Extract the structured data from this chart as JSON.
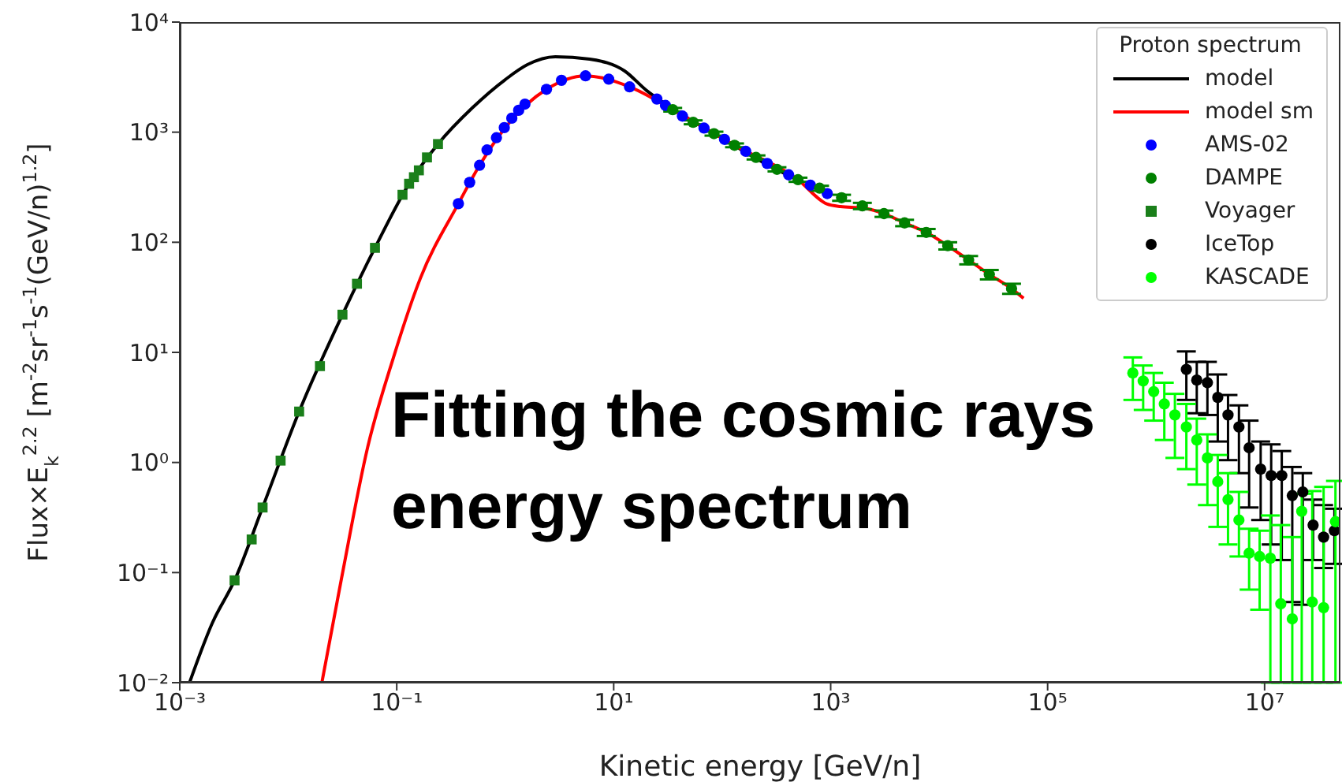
{
  "chart_data": {
    "type": "scatter",
    "xlabel": "Kinetic energy [GeV/n]",
    "ylabel": "Flux×E$_{k}$$^{2.2}$ [m$^{-2}$sr$^{-1}$s$^{-1}$(GeV/n)$^{1.2}$]",
    "legend_title": "Proton spectrum",
    "legend": "top right",
    "log": "xy",
    "xlim": [
      0.001,
      50000000
    ],
    "ylim": [
      0.01,
      10000
    ],
    "xticks": [
      {
        "value": 0.001,
        "label": "10⁻³"
      },
      {
        "value": 0.1,
        "label": "10⁻¹"
      },
      {
        "value": 10,
        "label": "10¹"
      },
      {
        "value": 1000,
        "label": "10³"
      },
      {
        "value": 100000,
        "label": "10⁵"
      },
      {
        "value": 10000000,
        "label": "10⁷"
      }
    ],
    "yticks": [
      {
        "value": 0.01,
        "label": "10⁻²"
      },
      {
        "value": 0.1,
        "label": "10⁻¹"
      },
      {
        "value": 1,
        "label": "10⁰"
      },
      {
        "value": 10,
        "label": "10¹"
      },
      {
        "value": 100,
        "label": "10²"
      },
      {
        "value": 1000,
        "label": "10³"
      },
      {
        "value": 10000,
        "label": "10⁴"
      }
    ],
    "annotations": [
      "Fitting the cosmic rays energy spectrum"
    ],
    "series": [
      {
        "name": "model",
        "type": "line",
        "color": "#000000",
        "x": [
          0.00123,
          0.002,
          0.0032,
          0.0058,
          0.0126,
          0.0316,
          0.063,
          0.13,
          0.24,
          0.5,
          1,
          1.6,
          2.9,
          6,
          12.6,
          20,
          30,
          100,
          300,
          500
        ],
        "values": [
          0.01,
          0.035,
          0.085,
          0.39,
          2.9,
          22,
          89,
          340,
          780,
          1670,
          3000,
          4100,
          4840,
          4600,
          3600,
          2400,
          1800,
          880,
          470,
          370
        ]
      },
      {
        "name": "model sm",
        "type": "line",
        "color": "#ff0000",
        "x": [
          0.0204,
          0.031,
          0.054,
          0.093,
          0.165,
          0.37,
          0.58,
          1,
          2.4,
          5.5,
          14,
          35,
          130,
          500,
          920,
          1230,
          1960,
          3100,
          4800,
          7600,
          12000,
          18700,
          29000,
          46500,
          60000
        ],
        "values": [
          0.01,
          0.089,
          1.38,
          8.9,
          47,
          224,
          500,
          1100,
          2450,
          3250,
          2580,
          1600,
          760,
          370,
          223,
          211,
          205,
          182,
          150,
          123,
          93,
          69,
          51,
          38,
          31
        ]
      },
      {
        "name": "AMS-02",
        "marker": "circle",
        "color": "#0000ff",
        "x": [
          0.37,
          0.47,
          0.58,
          0.68,
          0.83,
          0.98,
          1.15,
          1.33,
          1.52,
          2.4,
          3.3,
          5.5,
          9,
          14,
          25,
          30,
          43,
          68,
          105,
          165,
          260,
          410,
          650,
          930
        ],
        "values": [
          224,
          350,
          500,
          690,
          890,
          1100,
          1340,
          1580,
          1800,
          2450,
          2960,
          3250,
          3030,
          2580,
          2000,
          1750,
          1400,
          1090,
          860,
          670,
          520,
          410,
          330,
          277
        ]
      },
      {
        "name": "DAMPE",
        "marker": "circle",
        "color": "#008000",
        "x": [
          35,
          54,
          84,
          130,
          205,
          320,
          500,
          790,
          1260,
          1960,
          3100,
          4800,
          7600,
          12000,
          18700,
          29000,
          46500
        ],
        "values": [
          1600,
          1230,
          970,
          760,
          590,
          460,
          370,
          310,
          254,
          214,
          182,
          150,
          123,
          93,
          69,
          51,
          38
        ],
        "errors": [
          60,
          50,
          40,
          30,
          25,
          20,
          16,
          16,
          16,
          14,
          12,
          10,
          9,
          7,
          6,
          5,
          4
        ]
      },
      {
        "name": "Voyager",
        "color": "#1a7f1a",
        "marker": "square",
        "x": [
          0.0032,
          0.0046,
          0.0058,
          0.0085,
          0.0126,
          0.0196,
          0.0316,
          0.043,
          0.063,
          0.113,
          0.13,
          0.144,
          0.16,
          0.19,
          0.24
        ],
        "values": [
          0.085,
          0.2,
          0.39,
          1.04,
          2.9,
          7.5,
          22,
          42,
          89,
          270,
          340,
          390,
          450,
          590,
          780
        ]
      },
      {
        "name": "IceTop",
        "marker": "circle",
        "color": "#000000",
        "x": [
          1900000,
          2370000,
          2970000,
          3700000,
          4600000,
          5800000,
          7200000,
          9200000,
          11500000,
          14400000,
          18000000,
          22500000,
          28000000,
          35000000,
          44000000
        ],
        "values": [
          7.0,
          5.6,
          5.3,
          3.9,
          2.7,
          2.1,
          1.36,
          0.87,
          0.76,
          0.76,
          0.5,
          0.54,
          0.27,
          0.21,
          0.24
        ],
        "errors": [
          [
            3.7,
            10.2
          ],
          [
            2.8,
            8.2
          ],
          [
            2.7,
            8.2
          ],
          [
            1.55,
            6.3
          ],
          [
            1.05,
            4.1
          ],
          [
            0.8,
            3.3
          ],
          [
            0.39,
            2.4
          ],
          [
            0.3,
            1.55
          ],
          [
            0.18,
            1.46
          ],
          [
            0.13,
            1.27
          ],
          [
            0.054,
            0.91
          ],
          [
            0.051,
            0.8
          ],
          [
            0.13,
            0.46
          ],
          [
            0.11,
            0.41
          ],
          [
            0.12,
            0.38
          ]
        ]
      },
      {
        "name": "KASCADE",
        "marker": "circle",
        "color": "#00ff00",
        "x": [
          610000,
          760000,
          950000,
          1190000,
          1490000,
          1900000,
          2370000,
          2970000,
          3700000,
          4600000,
          5800000,
          7200000,
          9000000,
          11300000,
          14100000,
          18000000,
          22000000,
          27500000,
          35000000,
          45000000
        ],
        "values": [
          6.5,
          5.5,
          4.4,
          3.4,
          2.7,
          2.1,
          1.6,
          1.1,
          0.67,
          0.46,
          0.3,
          0.15,
          0.14,
          0.135,
          0.052,
          0.038,
          0.36,
          0.054,
          0.048,
          0.29
        ],
        "errors": [
          [
            3.7,
            9.0
          ],
          [
            3.0,
            7.6
          ],
          [
            2.4,
            6.5
          ],
          [
            1.6,
            5.3
          ],
          [
            1.1,
            4.2
          ],
          [
            0.87,
            3.4
          ],
          [
            0.63,
            2.5
          ],
          [
            0.41,
            1.8
          ],
          [
            0.26,
            1.17
          ],
          [
            0.18,
            0.8
          ],
          [
            0.14,
            0.54
          ],
          [
            0.07,
            0.25
          ],
          [
            0.046,
            0.24
          ],
          [
            0.01,
            0.33
          ],
          [
            0.01,
            0.27
          ],
          [
            0.01,
            0.21
          ],
          [
            0.01,
            0.52
          ],
          [
            0.01,
            0.55
          ],
          [
            0.01,
            0.6
          ],
          [
            0.01,
            0.68
          ]
        ]
      }
    ]
  }
}
